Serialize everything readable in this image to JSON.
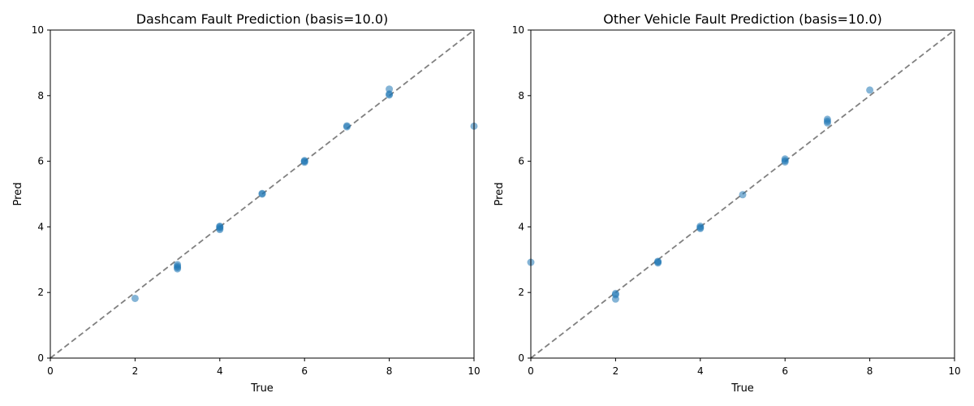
{
  "chart_data": [
    {
      "type": "scatter",
      "title": "Dashcam Fault Prediction (basis=10.0)",
      "xlabel": "True",
      "ylabel": "Pred",
      "xlim": [
        0,
        10
      ],
      "ylim": [
        0,
        10
      ],
      "xticks": [
        0,
        2,
        4,
        6,
        8,
        10
      ],
      "yticks": [
        0,
        2,
        4,
        6,
        8,
        10
      ],
      "grid": false,
      "reference_line": "y = x (dashed gray)",
      "color": "#1f77b4",
      "points": [
        {
          "x": 2,
          "y": 1.82
        },
        {
          "x": 3,
          "y": 2.72
        },
        {
          "x": 3,
          "y": 2.76
        },
        {
          "x": 3,
          "y": 2.8
        },
        {
          "x": 3,
          "y": 2.85
        },
        {
          "x": 4,
          "y": 3.92
        },
        {
          "x": 4,
          "y": 3.96
        },
        {
          "x": 4,
          "y": 4.0
        },
        {
          "x": 4,
          "y": 4.02
        },
        {
          "x": 5,
          "y": 5.0
        },
        {
          "x": 5,
          "y": 5.02
        },
        {
          "x": 6,
          "y": 5.97
        },
        {
          "x": 6,
          "y": 6.0
        },
        {
          "x": 6,
          "y": 6.02
        },
        {
          "x": 7,
          "y": 7.05
        },
        {
          "x": 7,
          "y": 7.08
        },
        {
          "x": 8,
          "y": 8.02
        },
        {
          "x": 8,
          "y": 8.05
        },
        {
          "x": 8,
          "y": 8.2
        },
        {
          "x": 10,
          "y": 7.07
        }
      ]
    },
    {
      "type": "scatter",
      "title": "Other Vehicle Fault Prediction (basis=10.0)",
      "xlabel": "True",
      "ylabel": "Pred",
      "xlim": [
        0,
        10
      ],
      "ylim": [
        0,
        10
      ],
      "xticks": [
        0,
        2,
        4,
        6,
        8,
        10
      ],
      "yticks": [
        0,
        2,
        4,
        6,
        8,
        10
      ],
      "grid": false,
      "reference_line": "y = x (dashed gray)",
      "color": "#1f77b4",
      "points": [
        {
          "x": 0,
          "y": 2.92
        },
        {
          "x": 2,
          "y": 1.8
        },
        {
          "x": 2,
          "y": 1.93
        },
        {
          "x": 2,
          "y": 1.97
        },
        {
          "x": 3,
          "y": 2.9
        },
        {
          "x": 3,
          "y": 2.93
        },
        {
          "x": 3,
          "y": 2.95
        },
        {
          "x": 4,
          "y": 3.95
        },
        {
          "x": 4,
          "y": 3.98
        },
        {
          "x": 4,
          "y": 4.02
        },
        {
          "x": 5,
          "y": 4.98
        },
        {
          "x": 6,
          "y": 5.98
        },
        {
          "x": 6,
          "y": 6.02
        },
        {
          "x": 6,
          "y": 6.07
        },
        {
          "x": 7,
          "y": 7.17
        },
        {
          "x": 7,
          "y": 7.22
        },
        {
          "x": 7,
          "y": 7.28
        },
        {
          "x": 8,
          "y": 8.17
        }
      ]
    }
  ]
}
